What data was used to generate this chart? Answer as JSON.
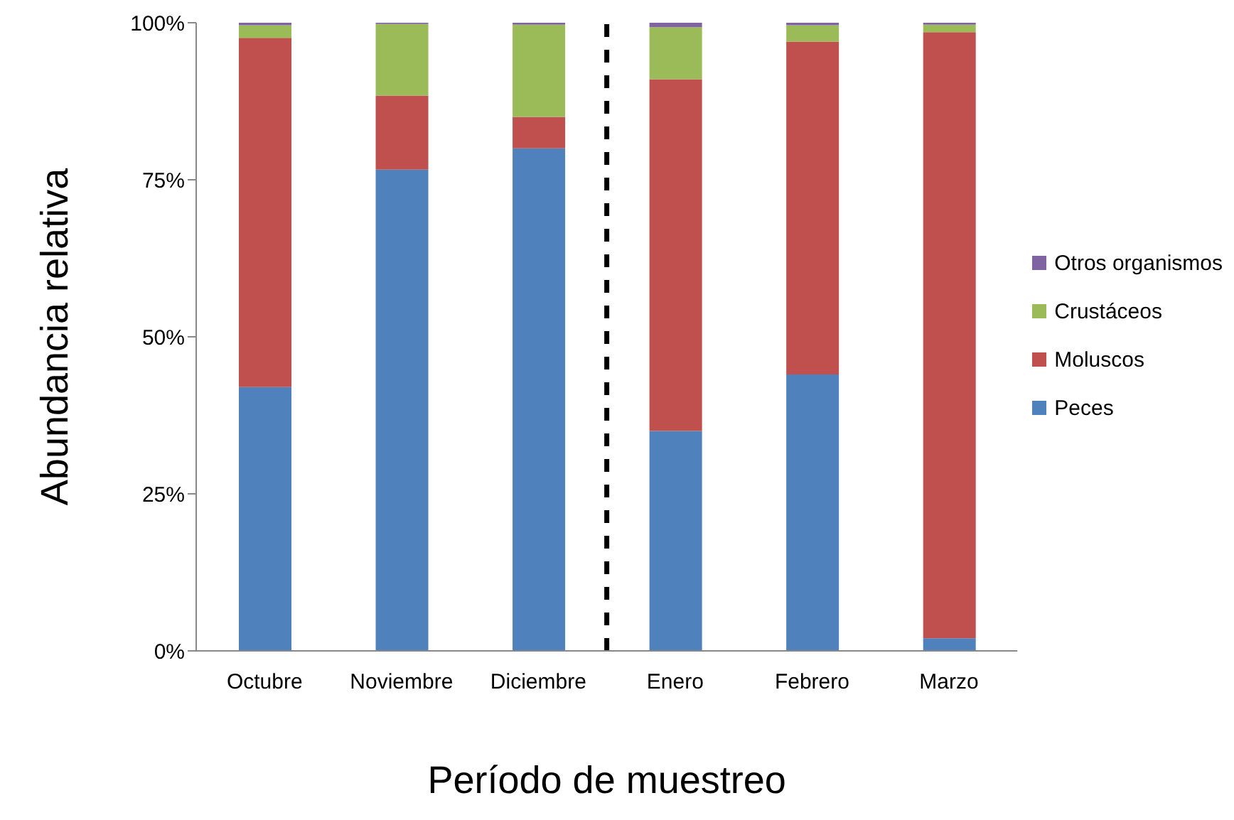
{
  "chart_data": {
    "type": "bar",
    "stacked": true,
    "xlabel": "Período de muestreo",
    "ylabel": "Abundancia relativa",
    "categories": [
      "Octubre",
      "Noviembre",
      "Diciembre",
      "Enero",
      "Febrero",
      "Marzo"
    ],
    "series": [
      {
        "name": "Peces",
        "color": "#4f81bd",
        "values": [
          42,
          76.6,
          80,
          35,
          44,
          2
        ]
      },
      {
        "name": "Moluscos",
        "color": "#c0504d",
        "values": [
          55.6,
          11.8,
          5,
          56,
          53,
          96.5
        ]
      },
      {
        "name": "Crustáceos",
        "color": "#9bbb59",
        "values": [
          2,
          11.4,
          14.7,
          8.3,
          2.6,
          1.2
        ]
      },
      {
        "name": "Otros organismos",
        "color": "#8064a2",
        "values": [
          0.4,
          0.2,
          0.3,
          0.7,
          0.4,
          0.3
        ]
      }
    ],
    "ylim": [
      0,
      100
    ],
    "yticks": [
      {
        "value": 0,
        "label": "0%"
      },
      {
        "value": 25,
        "label": "25%"
      },
      {
        "value": 50,
        "label": "50%"
      },
      {
        "value": 75,
        "label": "75%"
      },
      {
        "value": 100,
        "label": "100%"
      }
    ],
    "grid": false,
    "legend": "right"
  }
}
